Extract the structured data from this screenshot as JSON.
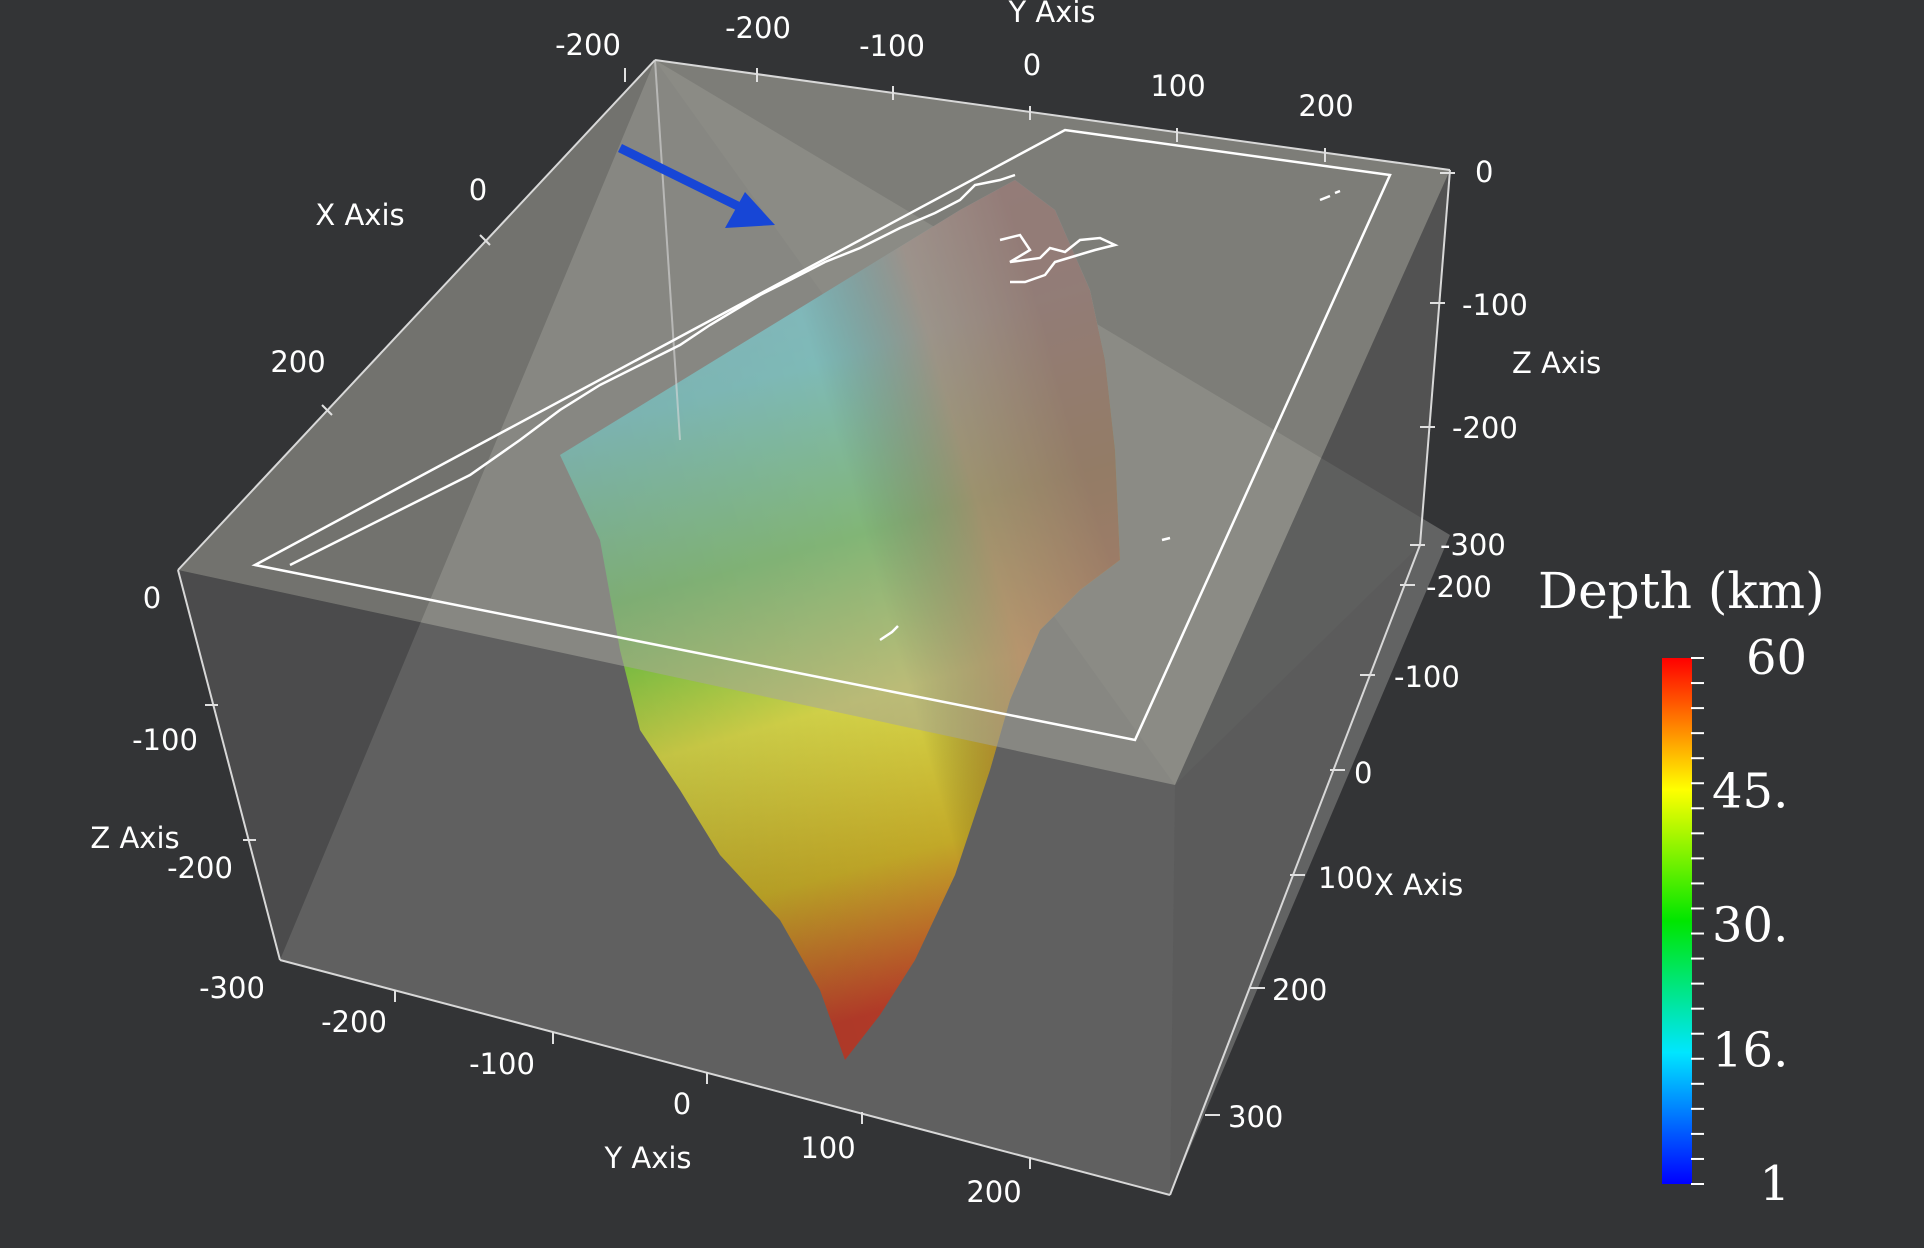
{
  "chart_data": {
    "type": "surface3d",
    "colormap": "rainbow",
    "surface": "subduction slab",
    "arrow_color": "#1746d6",
    "axes": {
      "x": {
        "title": "X Axis",
        "top_ticks": [
          "0",
          "200"
        ],
        "right_ticks": [
          "-200",
          "-100",
          "0",
          "100",
          "200",
          "300"
        ]
      },
      "y": {
        "title": "Y Axis",
        "top_ticks": [
          "-200",
          "-200",
          "-100",
          "0",
          "100",
          "200"
        ],
        "bottom_ticks": [
          "-200",
          "-100",
          "0",
          "100",
          "200"
        ]
      },
      "z": {
        "title": "Z Axis",
        "left_ticks": [
          "0",
          "-100",
          "-200",
          "-300"
        ],
        "right_ticks": [
          "0",
          "-100",
          "-200",
          "-300"
        ]
      }
    },
    "colorbar": {
      "title": "Depth (km)",
      "min": 1,
      "max": 60,
      "labels": [
        "60",
        "45.",
        "30.",
        "16.",
        "1"
      ],
      "label_values": [
        60,
        45,
        30,
        16,
        1
      ],
      "colors": [
        "#0000ff",
        "#00e6ff",
        "#00e600",
        "#ffff00",
        "#ff0000"
      ]
    }
  }
}
